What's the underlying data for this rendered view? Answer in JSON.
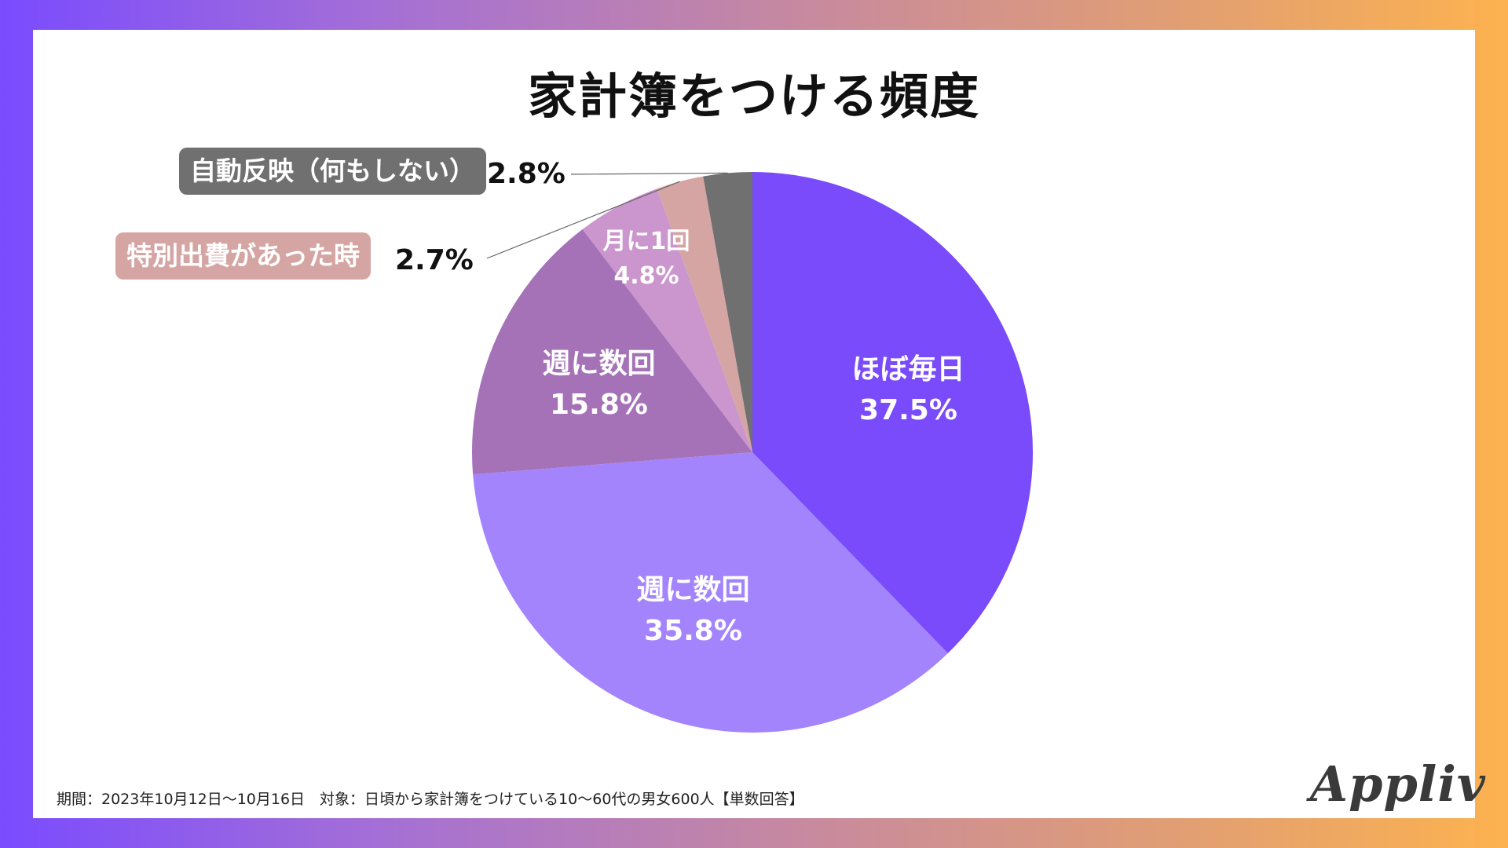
{
  "title": "家計簿をつける頻度",
  "footnote": "期間：2023年10月12日〜10月16日　対象：日頃から家計簿をつけている10〜60代の男女600人【単数回答】",
  "logo_text": "Appliv",
  "chart_data": {
    "type": "pie",
    "title": "家計簿をつける頻度",
    "slices": [
      {
        "label": "ほぼ毎日",
        "value": 37.5,
        "value_text": "37.5%",
        "color": "#7a4bfb",
        "label_position": "inside"
      },
      {
        "label": "週に数回",
        "value": 35.8,
        "value_text": "35.8%",
        "color": "#a384fd",
        "label_position": "inside"
      },
      {
        "label": "週に数回",
        "value": 15.8,
        "value_text": "15.8%",
        "color": "#a572b8",
        "label_position": "inside"
      },
      {
        "label": "月に1回",
        "value": 4.8,
        "value_text": "4.8%",
        "color": "#cb95cd",
        "label_position": "inside"
      },
      {
        "label": "特別出費があった時",
        "value": 2.7,
        "value_text": "2.7%",
        "color": "#d5a5a3",
        "label_position": "outside"
      },
      {
        "label": "自動反映（何もしない）",
        "value": 2.8,
        "value_text": "2.8%",
        "color": "#707070",
        "label_position": "outside"
      }
    ]
  }
}
